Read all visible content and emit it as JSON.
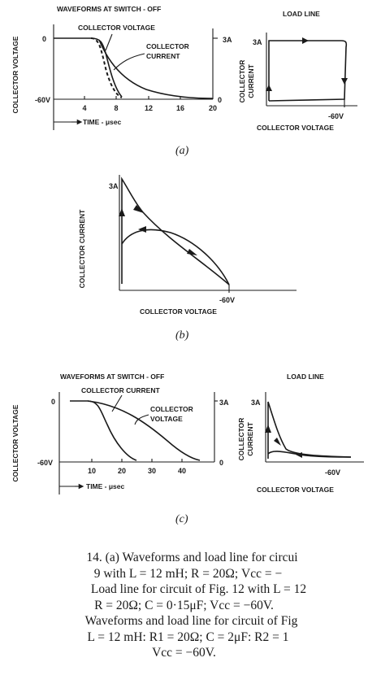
{
  "panel_a": {
    "waveform": {
      "title": "WAVEFORMS AT SWITCH - OFF",
      "ylabel_left": "COLLECTOR VOLTAGE",
      "y_top_left": "0",
      "y_bottom_left": "-60V",
      "y_top_right": "3A",
      "y_bottom_right": "0",
      "x_ticks": [
        "4",
        "8",
        "12",
        "16",
        "20"
      ],
      "xlabel": "TIME - μsec",
      "label_voltage": "COLLECTOR VOLTAGE",
      "label_current_1": "COLLECTOR",
      "label_current_2": "CURRENT"
    },
    "loadline": {
      "title": "LOAD LINE",
      "y_top": "3A",
      "ylabel_1": "COLLECTOR",
      "ylabel_2": "CURRENT",
      "x_right": "-60V",
      "xlabel": "COLLECTOR VOLTAGE"
    },
    "caption": "(a)"
  },
  "panel_b": {
    "y_top": "3A",
    "ylabel": "COLLECTOR CURRENT",
    "x_right": "-60V",
    "xlabel": "COLLECTOR VOLTAGE",
    "caption": "(b)"
  },
  "panel_c": {
    "waveform": {
      "title": "WAVEFORMS AT SWITCH - OFF",
      "ylabel_left": "COLLECTOR VOLTAGE",
      "y_top_left": "0",
      "y_bottom_left": "-60V",
      "y_top_right": "3A",
      "y_bottom_right": "0",
      "x_ticks": [
        "10",
        "20",
        "30",
        "40"
      ],
      "xlabel": "TIME - μsec",
      "label_current": "COLLECTOR CURRENT",
      "label_voltage_1": "COLLECTOR",
      "label_voltage_2": "VOLTAGE"
    },
    "loadline": {
      "title": "LOAD LINE",
      "y_top": "3A",
      "ylabel_1": "COLLECTOR",
      "ylabel_2": "CURRENT",
      "x_right": "-60V",
      "xlabel": "COLLECTOR VOLTAGE"
    },
    "caption": "(c)"
  },
  "caption_lines": [
    "14. (a) Waveforms and load line for circui",
    "9 with L = 12 mH; R = 20Ω; Vcc = −",
    "Load line for circuit of Fig. 12 with L = 12",
    "R = 20Ω; C = 0·15μF; Vcc = −60V.",
    "Waveforms and load line for circuit of Fig",
    "L = 12 mH: R1 = 20Ω; C = 2μF: R2 = 1",
    "Vcc = −60V."
  ]
}
